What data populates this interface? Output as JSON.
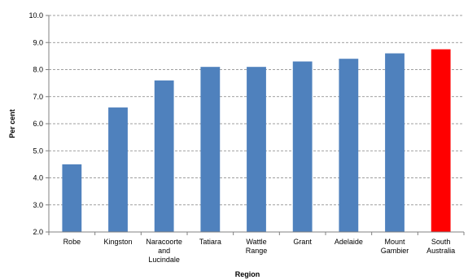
{
  "chart_data": {
    "type": "bar",
    "categories": [
      [
        "Robe"
      ],
      [
        "Kingston"
      ],
      [
        "Naracoorte",
        "and",
        "Lucindale"
      ],
      [
        "Tatiara"
      ],
      [
        "Wattle",
        "Range"
      ],
      [
        "Grant"
      ],
      [
        "Adelaide"
      ],
      [
        "Mount",
        "Gambier"
      ],
      [
        "South",
        "Australia"
      ]
    ],
    "values": [
      4.5,
      6.6,
      7.6,
      8.1,
      8.1,
      8.3,
      8.4,
      8.6,
      8.75
    ],
    "bar_colors": [
      "#4f81bd",
      "#4f81bd",
      "#4f81bd",
      "#4f81bd",
      "#4f81bd",
      "#4f81bd",
      "#4f81bd",
      "#4f81bd",
      "#ff0000"
    ],
    "xlabel": "Region",
    "ylabel": "Per cent",
    "ylim": [
      2.0,
      10.0
    ],
    "yticks": [
      "2.0",
      "3.0",
      "4.0",
      "5.0",
      "6.0",
      "7.0",
      "8.0",
      "9.0",
      "10.0"
    ],
    "grid": true
  }
}
